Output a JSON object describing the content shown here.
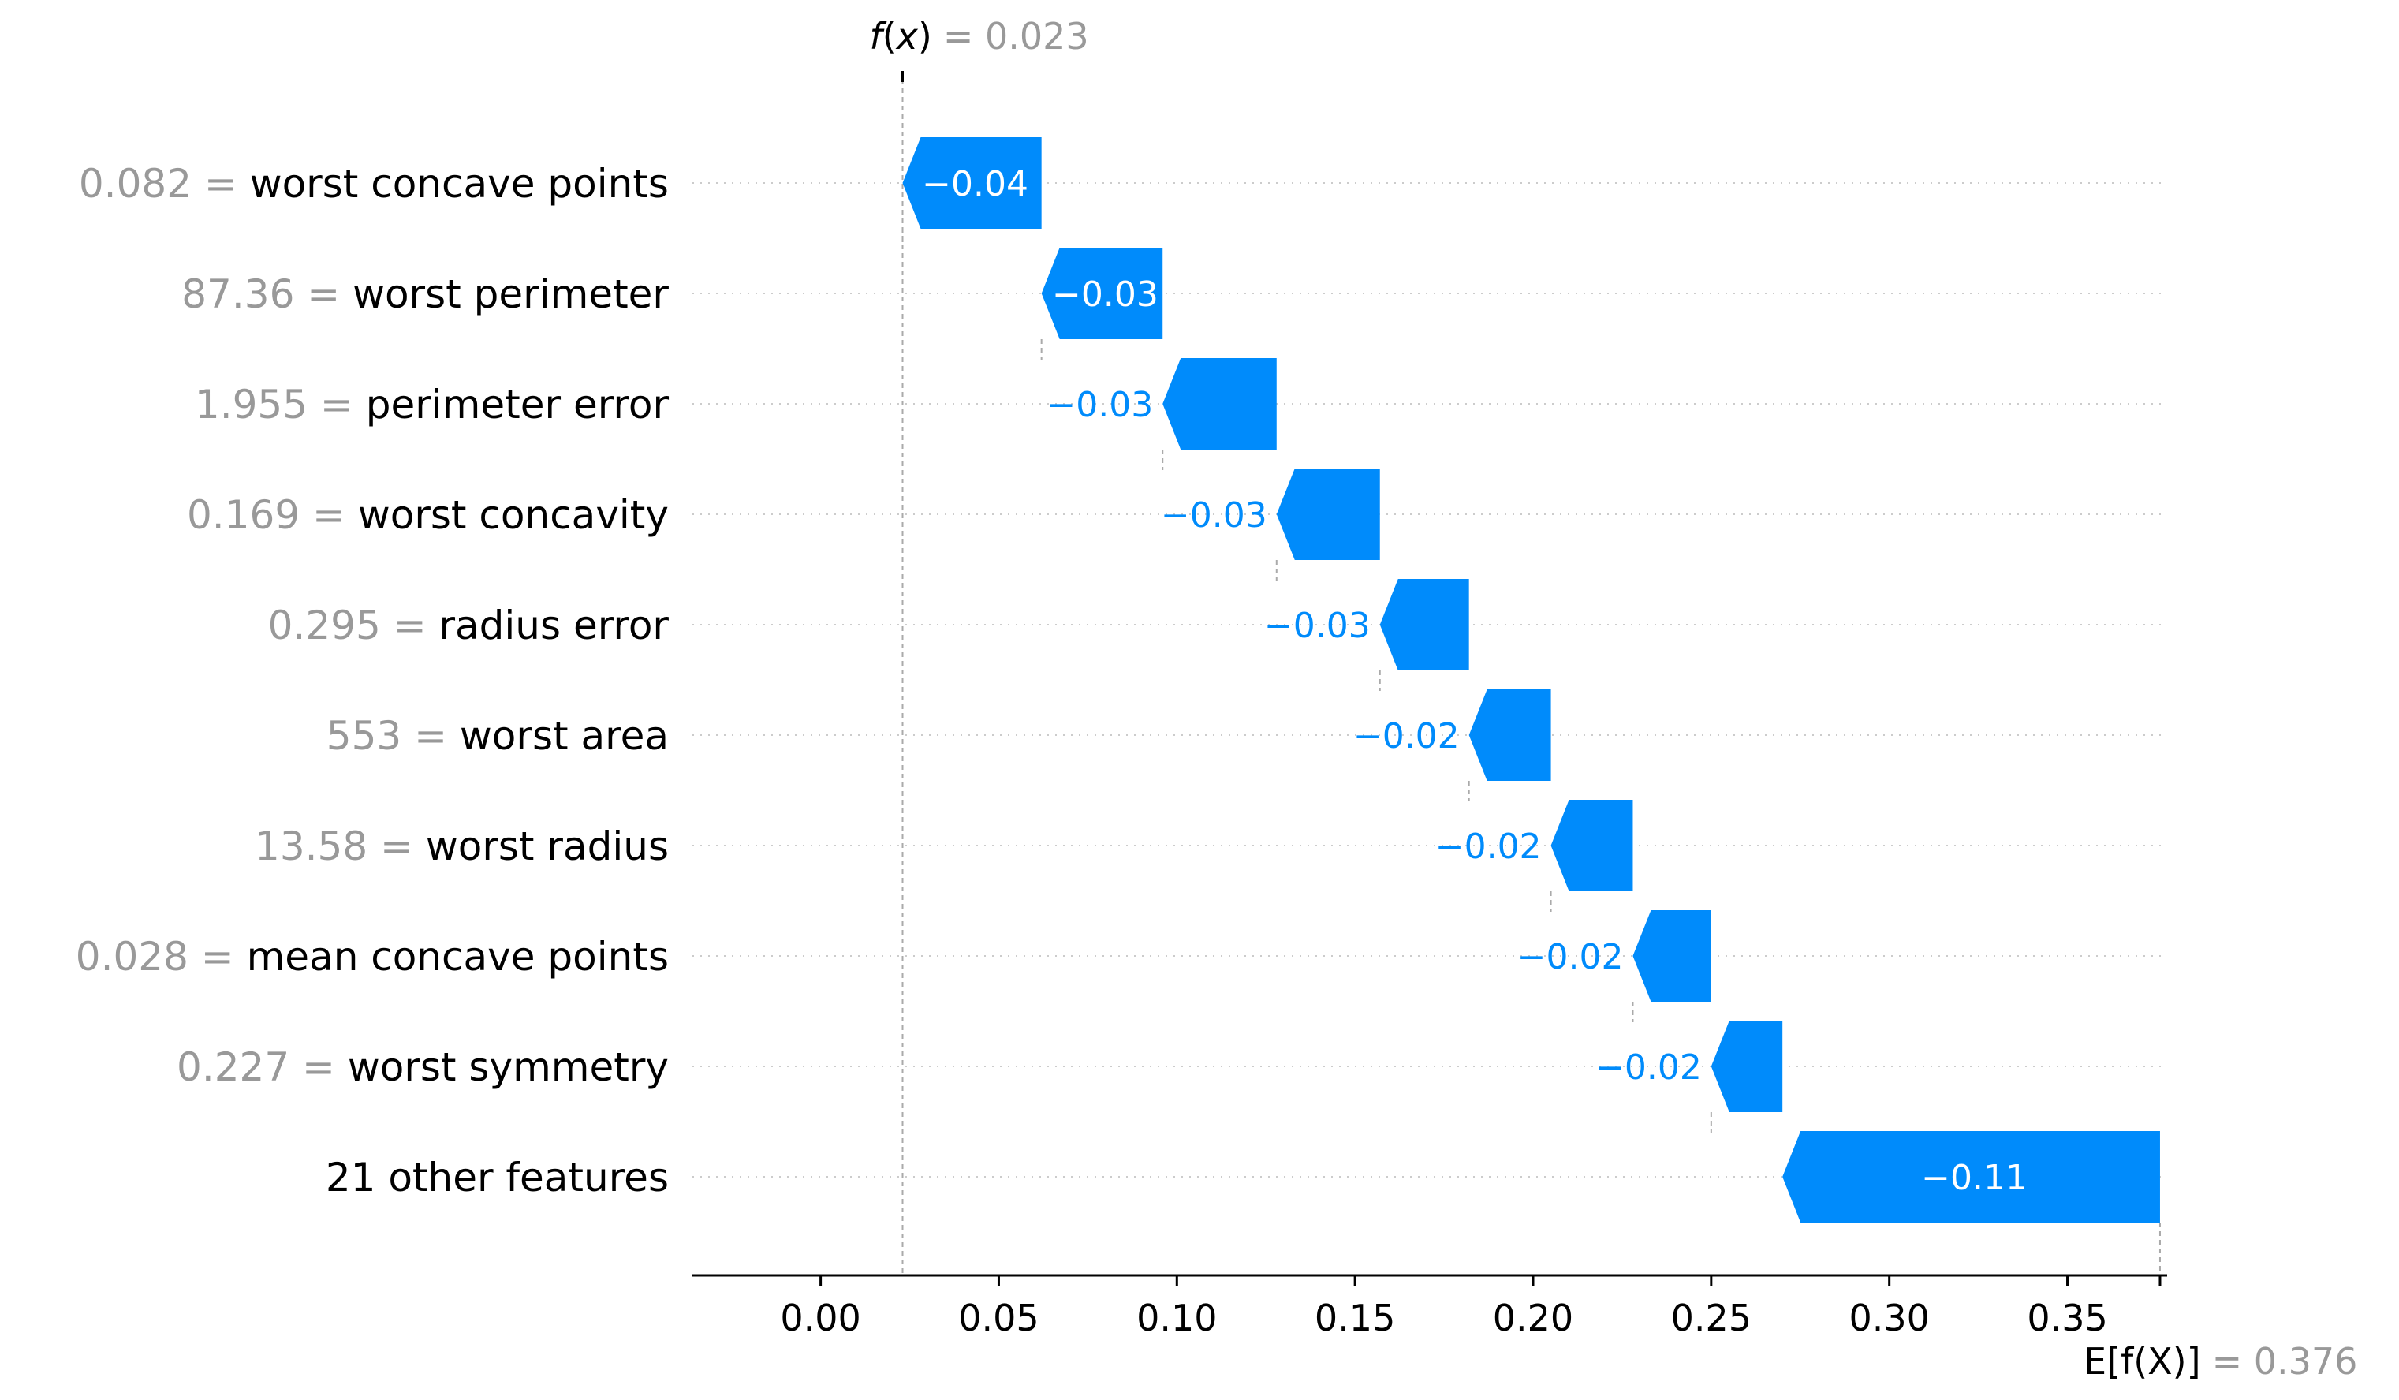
{
  "chart_data": {
    "type": "bar",
    "subtype": "waterfall",
    "fx": {
      "label_f": "f",
      "label_x": "x",
      "value_text": "= 0.023",
      "value": 0.023
    },
    "efx": {
      "label": "E[f(X)]",
      "value_text": "= 0.376",
      "value": 0.376
    },
    "xlim": [
      -0.036,
      0.378
    ],
    "xticks": [
      0.0,
      0.05,
      0.1,
      0.15,
      0.2,
      0.25,
      0.3,
      0.35
    ],
    "xtick_labels": [
      "0.00",
      "0.05",
      "0.10",
      "0.15",
      "0.20",
      "0.25",
      "0.30",
      "0.35"
    ],
    "grid": "dotted horizontal row lines",
    "colors": {
      "negative": "#008bfb",
      "feature_value": "#999999",
      "feature_name": "#000000",
      "axis": "#000000"
    },
    "features": [
      {
        "value": "0.082",
        "name": "worst concave points",
        "start": 0.062,
        "end": 0.023,
        "shap": -0.04,
        "shap_label": "−0.04",
        "label_inside": true
      },
      {
        "value": "87.36",
        "name": "worst perimeter",
        "start": 0.096,
        "end": 0.062,
        "shap": -0.03,
        "shap_label": "−0.03",
        "label_inside": true
      },
      {
        "value": "1.955",
        "name": "perimeter error",
        "start": 0.128,
        "end": 0.096,
        "shap": -0.03,
        "shap_label": "−0.03",
        "label_inside": false
      },
      {
        "value": "0.169",
        "name": "worst concavity",
        "start": 0.157,
        "end": 0.128,
        "shap": -0.03,
        "shap_label": "−0.03",
        "label_inside": false
      },
      {
        "value": "0.295",
        "name": "radius error",
        "start": 0.182,
        "end": 0.157,
        "shap": -0.03,
        "shap_label": "−0.03",
        "label_inside": false
      },
      {
        "value": "553",
        "name": "worst area",
        "start": 0.205,
        "end": 0.182,
        "shap": -0.02,
        "shap_label": "−0.02",
        "label_inside": false
      },
      {
        "value": "13.58",
        "name": "worst radius",
        "start": 0.228,
        "end": 0.205,
        "shap": -0.02,
        "shap_label": "−0.02",
        "label_inside": false
      },
      {
        "value": "0.028",
        "name": "mean concave points",
        "start": 0.25,
        "end": 0.228,
        "shap": -0.02,
        "shap_label": "−0.02",
        "label_inside": false
      },
      {
        "value": "0.227",
        "name": "worst symmetry",
        "start": 0.27,
        "end": 0.25,
        "shap": -0.02,
        "shap_label": "−0.02",
        "label_inside": false
      },
      {
        "value": "",
        "name": "21 other features",
        "start": 0.376,
        "end": 0.27,
        "shap": -0.11,
        "shap_label": "−0.11",
        "label_inside": true
      }
    ]
  }
}
